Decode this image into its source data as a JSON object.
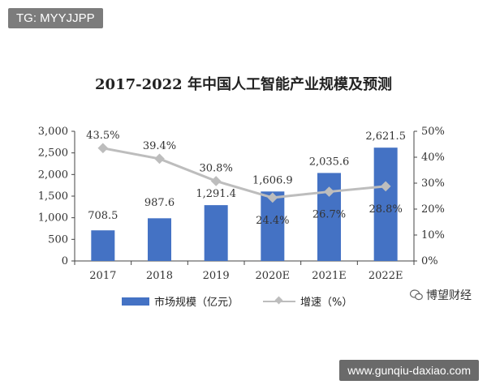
{
  "watermark_top": "TG: MYYJJPP",
  "watermark_bottom": "www.gunqiu-daxiao.com",
  "brand_label": "博望财经",
  "chart_data": {
    "type": "bar",
    "title": "2017-2022 年中国人工智能产业规模及预测",
    "categories": [
      "2017",
      "2018",
      "2019",
      "2020E",
      "2021E",
      "2022E"
    ],
    "series": [
      {
        "name": "市场规模（亿元）",
        "type": "bar",
        "axis": "left",
        "values": [
          708.5,
          987.6,
          1291.4,
          1606.9,
          2035.6,
          2621.5
        ],
        "labels": [
          "708.5",
          "987.6",
          "1,291.4",
          "1,606.9",
          "2,035.6",
          "2,621.5"
        ],
        "color": "#4472c4"
      },
      {
        "name": "增速（%）",
        "type": "line",
        "axis": "right",
        "values": [
          43.5,
          39.4,
          30.8,
          24.4,
          26.7,
          28.8
        ],
        "labels": [
          "43.5%",
          "39.4%",
          "30.8%",
          "24.4%",
          "26.7%",
          "28.8%"
        ],
        "color": "#bdbdbd"
      }
    ],
    "ylim": [
      0,
      3000
    ],
    "y_ticks": [
      "0",
      "500",
      "1,000",
      "1,500",
      "2,000",
      "2,500",
      "3,000"
    ],
    "y2lim": [
      0,
      50
    ],
    "y2_ticks": [
      "0%",
      "10%",
      "20%",
      "30%",
      "40%",
      "50%"
    ],
    "grid": false,
    "legend_position": "bottom"
  }
}
